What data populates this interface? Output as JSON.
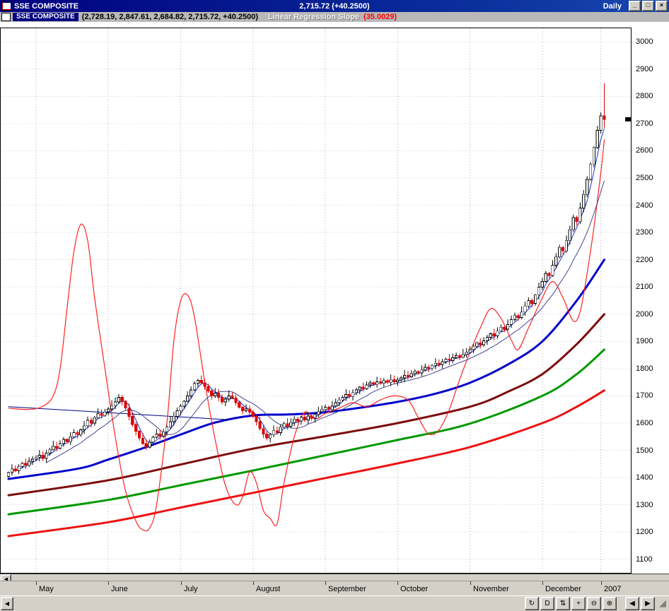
{
  "window": {
    "title": "SSE COMPOSITE",
    "quote": "2,715.72 (+40.2500)",
    "period": "Daily",
    "controls": [
      {
        "name": "minimize",
        "glyph": "_"
      },
      {
        "name": "restore",
        "glyph": "□"
      },
      {
        "name": "close",
        "glyph": "×"
      }
    ]
  },
  "legend": {
    "symbol": "SSE COMPOSITE",
    "ohlc_text": "(2,728.19, 2,847.61, 2,684.82, 2,715.72, +40.2500)",
    "indicator_label": "Linear Regression Slope",
    "indicator_value": "(35.0029)"
  },
  "scrollbar": {
    "left_glyph": "◀",
    "right_glyph": "▶"
  },
  "toolbar": {
    "buttons": [
      {
        "name": "refresh",
        "glyph": "↻"
      },
      {
        "name": "period-daily",
        "glyph": "D"
      },
      {
        "name": "fit-vertical",
        "glyph": "⇅"
      },
      {
        "name": "crosshair",
        "glyph": "+"
      },
      {
        "name": "zoom-out",
        "glyph": "⊖"
      },
      {
        "name": "zoom-in",
        "glyph": "⊕"
      },
      {
        "name": "page-left",
        "glyph": "◀"
      },
      {
        "name": "page-right",
        "glyph": "▶"
      }
    ]
  },
  "chart_data": {
    "type": "candlestick",
    "title": "SSE COMPOSITE",
    "period": "Daily",
    "ylim": [
      1050,
      3050
    ],
    "y_ticks": [
      3000,
      2900,
      2800,
      2700,
      2600,
      2500,
      2400,
      2300,
      2200,
      2100,
      2000,
      1900,
      1800,
      1700,
      1600,
      1500,
      1400,
      1300,
      1200,
      1100
    ],
    "x_labels": [
      {
        "label": "May",
        "index": 8
      },
      {
        "label": "June",
        "index": 29
      },
      {
        "label": "July",
        "index": 50
      },
      {
        "label": "August",
        "index": 71
      },
      {
        "label": "September",
        "index": 92
      },
      {
        "label": "October",
        "index": 113
      },
      {
        "label": "November",
        "index": 134
      },
      {
        "label": "December",
        "index": 155
      },
      {
        "label": "2007",
        "index": 172
      }
    ],
    "last_candle": {
      "open": 2728.19,
      "high": 2847.61,
      "low": 2684.82,
      "close": 2715.72,
      "change": "+40.2500"
    },
    "closes": [
      1418,
      1432,
      1425,
      1440,
      1452,
      1445,
      1460,
      1468,
      1475,
      1482,
      1470,
      1490,
      1502,
      1515,
      1508,
      1525,
      1540,
      1532,
      1550,
      1565,
      1558,
      1575,
      1590,
      1610,
      1600,
      1620,
      1635,
      1628,
      1641,
      1652,
      1664,
      1678,
      1695,
      1680,
      1655,
      1625,
      1595,
      1570,
      1545,
      1525,
      1512,
      1530,
      1548,
      1560,
      1552,
      1568,
      1585,
      1605,
      1625,
      1645,
      1662,
      1680,
      1700,
      1722,
      1745,
      1757,
      1748,
      1735,
      1718,
      1700,
      1710,
      1695,
      1678,
      1688,
      1700,
      1692,
      1675,
      1658,
      1645,
      1652,
      1640,
      1625,
      1605,
      1580,
      1560,
      1545,
      1558,
      1572,
      1565,
      1585,
      1598,
      1588,
      1602,
      1615,
      1608,
      1622,
      1612,
      1626,
      1618,
      1632,
      1642,
      1650,
      1658,
      1650,
      1662,
      1675,
      1685,
      1695,
      1705,
      1698,
      1712,
      1722,
      1732,
      1726,
      1740,
      1748,
      1742,
      1752,
      1746,
      1756,
      1750,
      1760,
      1752,
      1758,
      1766,
      1775,
      1770,
      1782,
      1790,
      1784,
      1795,
      1805,
      1800,
      1812,
      1820,
      1815,
      1826,
      1835,
      1830,
      1840,
      1848,
      1842,
      1852,
      1860,
      1870,
      1882,
      1895,
      1888,
      1902,
      1915,
      1928,
      1920,
      1938,
      1952,
      1945,
      1962,
      1980,
      1995,
      1988,
      2008,
      2030,
      2050,
      2040,
      2070,
      2099,
      2120,
      2150,
      2142,
      2180,
      2210,
      2245,
      2232,
      2270,
      2310,
      2355,
      2340,
      2390,
      2440,
      2495,
      2550,
      2612,
      2675,
      2728,
      2715.72
    ],
    "computed_mas": [
      {
        "period": 4,
        "color": "#2233cc",
        "width": 1
      },
      {
        "period": 12,
        "color": "#45458f",
        "width": 1
      }
    ],
    "overlays": [
      {
        "name": "ma-medium-blue",
        "color": "#0000cc",
        "width": 3,
        "points": [
          [
            0,
            1395
          ],
          [
            20,
            1432
          ],
          [
            29,
            1466
          ],
          [
            40,
            1512
          ],
          [
            50,
            1558
          ],
          [
            60,
            1602
          ],
          [
            71,
            1628
          ],
          [
            82,
            1632
          ],
          [
            92,
            1640
          ],
          [
            103,
            1658
          ],
          [
            113,
            1678
          ],
          [
            124,
            1708
          ],
          [
            134,
            1748
          ],
          [
            145,
            1815
          ],
          [
            155,
            1900
          ],
          [
            165,
            2050
          ],
          [
            173,
            2200
          ]
        ]
      },
      {
        "name": "ma-slow-maroon",
        "color": "#7c0c0c",
        "width": 3,
        "points": [
          [
            0,
            1335
          ],
          [
            29,
            1390
          ],
          [
            50,
            1448
          ],
          [
            71,
            1506
          ],
          [
            92,
            1552
          ],
          [
            113,
            1600
          ],
          [
            134,
            1660
          ],
          [
            145,
            1715
          ],
          [
            155,
            1780
          ],
          [
            165,
            1890
          ],
          [
            173,
            2000
          ]
        ]
      },
      {
        "name": "ma-slower-green",
        "color": "#009900",
        "width": 3,
        "points": [
          [
            0,
            1265
          ],
          [
            29,
            1318
          ],
          [
            50,
            1372
          ],
          [
            71,
            1426
          ],
          [
            92,
            1482
          ],
          [
            113,
            1538
          ],
          [
            134,
            1598
          ],
          [
            155,
            1700
          ],
          [
            165,
            1780
          ],
          [
            173,
            1870
          ]
        ]
      },
      {
        "name": "ma-slowest-red",
        "color": "#ee1111",
        "width": 3,
        "points": [
          [
            0,
            1185
          ],
          [
            29,
            1236
          ],
          [
            50,
            1290
          ],
          [
            71,
            1344
          ],
          [
            92,
            1398
          ],
          [
            113,
            1452
          ],
          [
            134,
            1512
          ],
          [
            155,
            1600
          ],
          [
            165,
            1660
          ],
          [
            173,
            1720
          ]
        ]
      },
      {
        "name": "trendline",
        "color": "#000080",
        "width": 1,
        "points": [
          [
            0,
            1660
          ],
          [
            64,
            1612
          ]
        ]
      },
      {
        "name": "linear-regression-slope",
        "label": "Linear Regression Slope",
        "value": 35.0029,
        "color": "#ff2222",
        "width": 1.2,
        "points": [
          [
            0,
            1655
          ],
          [
            6,
            1650
          ],
          [
            10,
            1662
          ],
          [
            13,
            1700
          ],
          [
            15,
            1800
          ],
          [
            17,
            2020
          ],
          [
            19,
            2230
          ],
          [
            21,
            2330
          ],
          [
            23,
            2270
          ],
          [
            25,
            2060
          ],
          [
            28,
            1800
          ],
          [
            31,
            1550
          ],
          [
            34,
            1350
          ],
          [
            37,
            1240
          ],
          [
            39,
            1208
          ],
          [
            41,
            1215
          ],
          [
            43,
            1300
          ],
          [
            46,
            1600
          ],
          [
            48,
            1900
          ],
          [
            50,
            2050
          ],
          [
            52,
            2070
          ],
          [
            54,
            1990
          ],
          [
            57,
            1750
          ],
          [
            60,
            1540
          ],
          [
            63,
            1370
          ],
          [
            66,
            1300
          ],
          [
            68,
            1330
          ],
          [
            70,
            1420
          ],
          [
            72,
            1380
          ],
          [
            74,
            1280
          ],
          [
            76,
            1250
          ],
          [
            78,
            1230
          ],
          [
            80,
            1380
          ],
          [
            83,
            1550
          ],
          [
            86,
            1640
          ],
          [
            89,
            1615
          ],
          [
            92,
            1635
          ],
          [
            96,
            1655
          ],
          [
            100,
            1675
          ],
          [
            104,
            1660
          ],
          [
            108,
            1685
          ],
          [
            112,
            1700
          ],
          [
            116,
            1685
          ],
          [
            119,
            1620
          ],
          [
            122,
            1560
          ],
          [
            125,
            1575
          ],
          [
            128,
            1650
          ],
          [
            131,
            1760
          ],
          [
            134,
            1860
          ],
          [
            137,
            1950
          ],
          [
            140,
            2020
          ],
          [
            143,
            1985
          ],
          [
            146,
            1905
          ],
          [
            148,
            1870
          ],
          [
            151,
            1950
          ],
          [
            155,
            2060
          ],
          [
            158,
            2120
          ],
          [
            161,
            2060
          ],
          [
            164,
            1975
          ],
          [
            166,
            2010
          ],
          [
            168,
            2150
          ],
          [
            170,
            2320
          ],
          [
            172,
            2520
          ],
          [
            173,
            2640
          ]
        ]
      }
    ]
  }
}
